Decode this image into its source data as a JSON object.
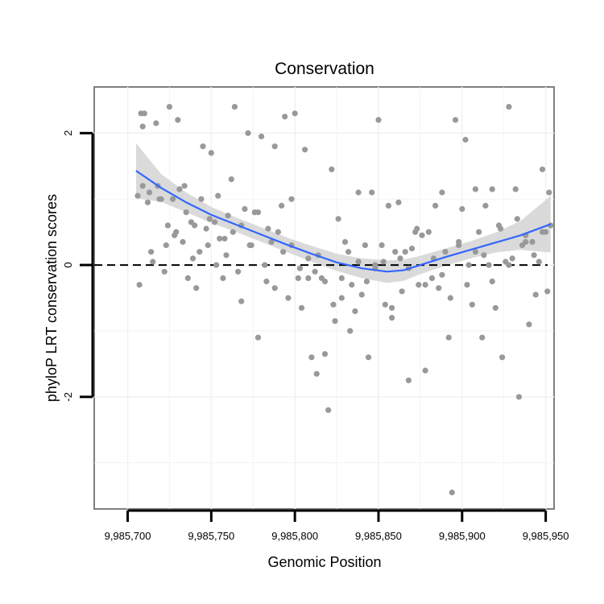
{
  "chart_data": {
    "type": "scatter",
    "title": "Conservation",
    "xlabel": "Genomic Position",
    "ylabel": "phyloP LRT conservation scores",
    "xlim": [
      9985680,
      9985955
    ],
    "ylim": [
      -3.7,
      2.7
    ],
    "x_ticks": [
      9985700,
      9985750,
      9985800,
      9985850,
      9985900,
      9985950
    ],
    "x_tick_labels": [
      "9,985,700",
      "9,985,750",
      "9,985,800",
      "9,985,850",
      "9,985,900",
      "9,985,950"
    ],
    "y_ticks": [
      -2,
      0,
      2
    ],
    "y_tick_labels": [
      "-2",
      "0",
      "2"
    ],
    "reference_line": {
      "y": 0,
      "style": "dashed",
      "color": "#000000"
    },
    "point_color": "#999999",
    "smooth_color": "#3366ff",
    "band_color": "#d3d3d3",
    "points": {
      "x": [
        9985706,
        9985707,
        9985708,
        9985709,
        9985710,
        9985712,
        9985713,
        9985715,
        9985717,
        9985718,
        9985720,
        9985722,
        9985723,
        9985725,
        9985727,
        9985728,
        9985730,
        9985731,
        9985733,
        9985735,
        9985736,
        9985738,
        9985740,
        9985741,
        9985743,
        9985745,
        9985747,
        9985748,
        9985750,
        9985752,
        9985754,
        9985755,
        9985757,
        9985759,
        9985760,
        9985762,
        9985764,
        9985766,
        9985768,
        9985770,
        9985772,
        9985774,
        9985776,
        9985778,
        9985780,
        9985782,
        9985784,
        9985786,
        9985788,
        9985790,
        9985792,
        9985794,
        9985796,
        9985798,
        9985800,
        9985802,
        9985804,
        9985806,
        9985808,
        9985810,
        9985812,
        9985814,
        9985816,
        9985818,
        9985820,
        9985822,
        9985824,
        9985826,
        9985828,
        9985830,
        9985832,
        9985834,
        9985836,
        9985838,
        9985840,
        9985842,
        9985844,
        9985846,
        9985848,
        9985850,
        9985852,
        9985854,
        9985856,
        9985858,
        9985860,
        9985862,
        9985864,
        9985866,
        9985868,
        9985870,
        9985872,
        9985874,
        9985876,
        9985878,
        9985880,
        9985882,
        9985884,
        9985886,
        9985888,
        9985890,
        9985892,
        9985894,
        9985896,
        9985898,
        9985900,
        9985902,
        9985904,
        9985906,
        9985908,
        9985910,
        9985912,
        9985914,
        9985916,
        9985918,
        9985920,
        9985922,
        9985924,
        9985926,
        9985928,
        9985930,
        9985932,
        9985934,
        9985936,
        9985938,
        9985940,
        9985942,
        9985944,
        9985946,
        9985948,
        9985950,
        9985952,
        9985953,
        9985709,
        9985714,
        9985719,
        9985724,
        9985729,
        9985734,
        9985739,
        9985744,
        9985749,
        9985753,
        9985758,
        9985763,
        9985768,
        9985773,
        9985778,
        9985783,
        9985788,
        9985793,
        9985798,
        9985803,
        9985808,
        9985813,
        9985818,
        9985823,
        9985828,
        9985833,
        9985838,
        9985843,
        9985848,
        9985853,
        9985858,
        9985863,
        9985868,
        9985873,
        9985878,
        9985883,
        9985888,
        9985893,
        9985898,
        9985903,
        9985908,
        9985913,
        9985918,
        9985923,
        9985928,
        9985933,
        9985938,
        9985943,
        9985948,
        9985951
      ],
      "y": [
        1.05,
        -0.3,
        2.3,
        2.1,
        2.3,
        0.95,
        1.1,
        0.05,
        2.15,
        1.2,
        1.0,
        -0.1,
        0.3,
        2.4,
        1.0,
        0.45,
        2.2,
        1.15,
        0.35,
        0.8,
        -0.2,
        0.65,
        0.6,
        -0.35,
        0.2,
        1.8,
        0.55,
        0.3,
        1.7,
        0.65,
        1.05,
        0.4,
        -0.2,
        0.15,
        0.75,
        1.3,
        2.4,
        -0.1,
        -0.55,
        0.85,
        2.0,
        0.3,
        0.8,
        -1.1,
        1.95,
        0.0,
        0.55,
        0.35,
        1.8,
        0.5,
        0.9,
        2.25,
        -0.5,
        0.3,
        2.3,
        -0.2,
        -0.65,
        1.75,
        0.1,
        -1.4,
        -0.1,
        0.15,
        -0.2,
        -1.35,
        -2.2,
        1.45,
        -0.85,
        0.7,
        -0.5,
        0.35,
        0.2,
        -0.3,
        -0.7,
        1.1,
        -0.45,
        0.3,
        -1.4,
        1.1,
        0.0,
        2.2,
        0.3,
        -0.6,
        0.9,
        -0.8,
        0.2,
        0.95,
        -0.4,
        0.2,
        -1.75,
        0.25,
        0.5,
        -0.3,
        0.45,
        -1.6,
        0.5,
        -0.2,
        0.9,
        -0.35,
        1.1,
        0.2,
        -1.1,
        -3.45,
        2.2,
        0.35,
        0.85,
        1.9,
        0.0,
        -0.6,
        1.15,
        0.5,
        -1.1,
        0.9,
        0.0,
        1.15,
        -0.65,
        0.6,
        -1.4,
        0.05,
        2.4,
        0.1,
        1.15,
        -2.0,
        0.3,
        0.45,
        -0.9,
        0.35,
        -0.45,
        0.05,
        1.45,
        0.5,
        1.1,
        0.6,
        1.2,
        0.2,
        1.0,
        0.6,
        0.5,
        1.2,
        0.1,
        1.0,
        0.7,
        0.0,
        0.4,
        0.5,
        0.6,
        0.3,
        0.8,
        -0.25,
        -0.35,
        0.2,
        1.0,
        -0.05,
        -0.2,
        -1.65,
        -0.25,
        -0.6,
        -0.2,
        -1.0,
        0.05,
        -0.25,
        -0.05,
        0.05,
        -0.65,
        0.1,
        -0.05,
        0.55,
        -0.3,
        0.1,
        -0.15,
        -0.5,
        0.3,
        -0.3,
        0.2,
        0.15,
        -0.25,
        0.55,
        0.0,
        0.7,
        0.35,
        0.15,
        0.5,
        -0.4
      ]
    },
    "smooth": {
      "x": [
        9985705,
        9985720,
        9985735,
        9985750,
        9985765,
        9985780,
        9985795,
        9985810,
        9985825,
        9985840,
        9985855,
        9985865,
        9985875,
        9985890,
        9985905,
        9985920,
        9985935,
        9985953
      ],
      "y": [
        1.43,
        1.17,
        0.95,
        0.76,
        0.61,
        0.46,
        0.31,
        0.17,
        0.04,
        -0.05,
        -0.1,
        -0.08,
        0.0,
        0.12,
        0.23,
        0.34,
        0.45,
        0.62
      ],
      "upper": [
        1.85,
        1.38,
        1.1,
        0.88,
        0.72,
        0.57,
        0.42,
        0.29,
        0.17,
        0.1,
        0.07,
        0.08,
        0.14,
        0.25,
        0.36,
        0.49,
        0.67,
        1.05
      ],
      "lower": [
        1.01,
        0.96,
        0.8,
        0.64,
        0.5,
        0.35,
        0.2,
        0.05,
        -0.09,
        -0.2,
        -0.27,
        -0.24,
        -0.14,
        -0.01,
        0.1,
        0.19,
        0.23,
        0.19
      ]
    }
  }
}
